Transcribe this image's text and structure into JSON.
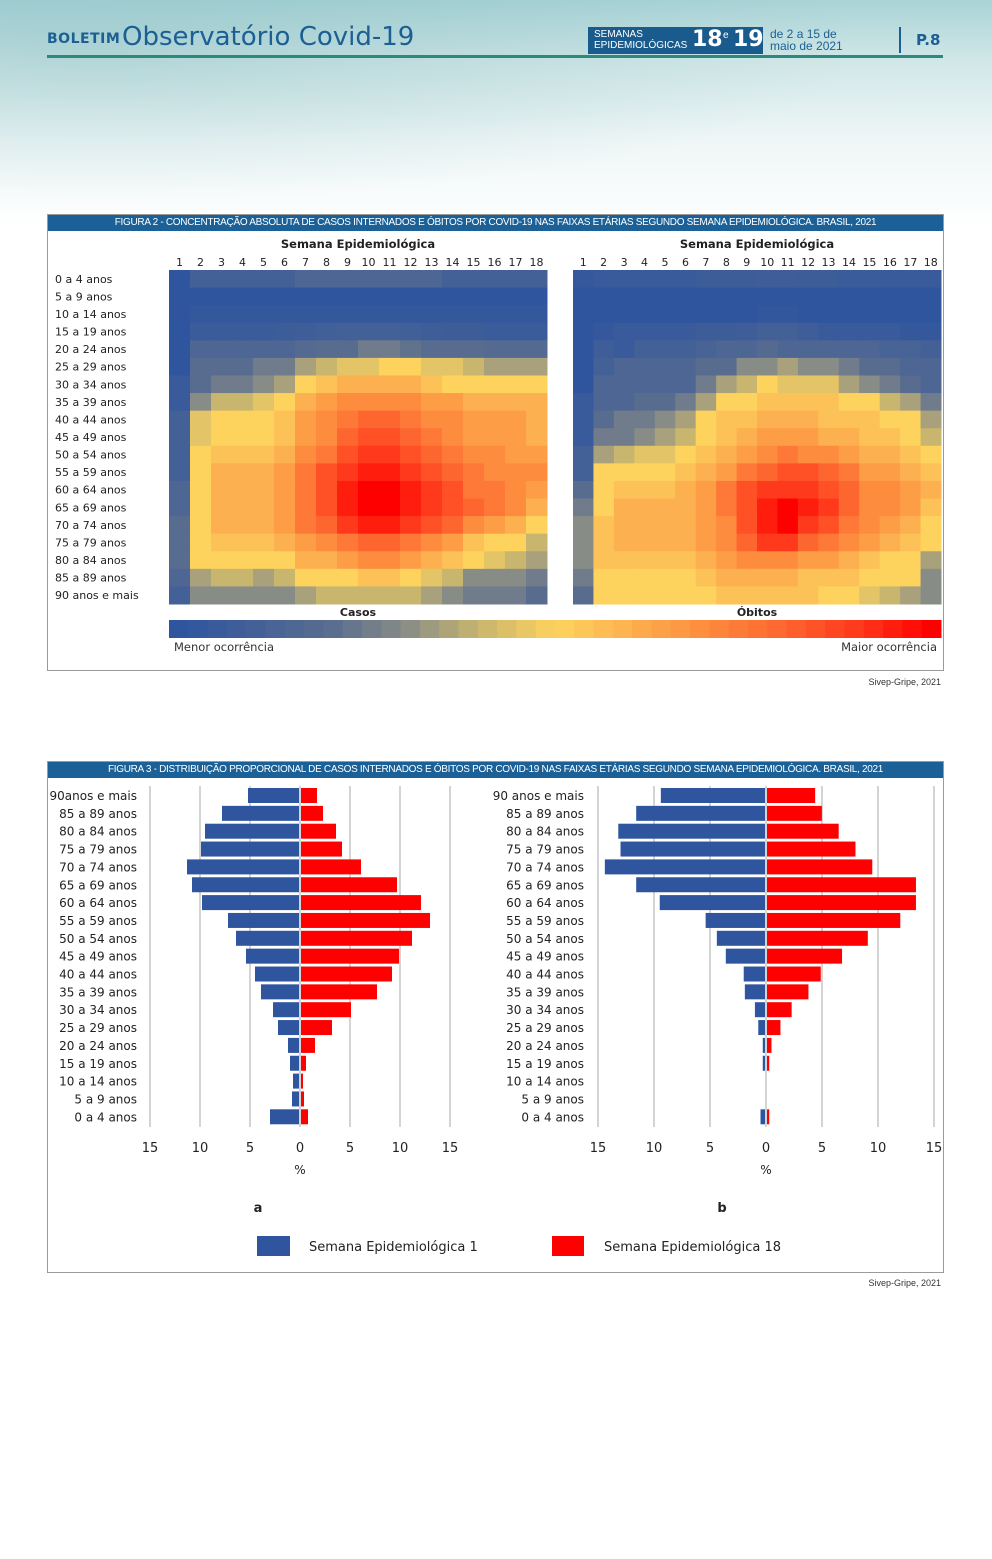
{
  "header": {
    "boletim": "BOLETIM",
    "title": "Observatório Covid-19",
    "badge_line1": "SEMANAS",
    "badge_line2": "EPIDEMIOLÓGICAS",
    "week_a": "18",
    "conj": "e",
    "week_b": "19",
    "dates_line1": "de 2 a 15 de",
    "dates_line2": "maio de 2021",
    "page": "P.8"
  },
  "colors": {
    "brand": "#1b5f93",
    "title_bar": "#1b6197",
    "series1": "#2f559f",
    "series18": "#ff0000"
  },
  "figure2": {
    "title": "FIGURA 2 - CONCENTRAÇÃO ABSOLUTA DE CASOS INTERNADOS E ÓBITOS POR COVID-19 NAS FAIXAS ETÁRIAS SEGUNDO SEMANA EPIDEMIOLÓGICA. BRASIL, 2021",
    "source": "Sivep-Gripe, 2021",
    "legend_low": "Menor ocorrência",
    "legend_high": "Maior ocorrência"
  },
  "figure3": {
    "title": "FIGURA 3 - DISTRIBUIÇÃO PROPORCIONAL DE CASOS INTERNADOS E ÓBITOS POR COVID-19 NAS FAIXAS ETÁRIAS SEGUNDO SEMANA EPIDEMIOLÓGICA. BRASIL, 2021",
    "source": "Sivep-Gripe, 2021",
    "legend": [
      "Semana Epidemiológica 1",
      "Semana Epidemiológica 18"
    ]
  },
  "chart_data": [
    {
      "type": "heatmap",
      "title": "Semana Epidemiológica",
      "xlabel": "Casos",
      "x": [
        "1",
        "2",
        "3",
        "4",
        "5",
        "6",
        "7",
        "8",
        "9",
        "10",
        "11",
        "12",
        "13",
        "14",
        "15",
        "16",
        "17",
        "18"
      ],
      "y": [
        "0 a 4 anos",
        "5 a 9 anos",
        "10 a 14 anos",
        "15 a 19 anos",
        "20 a 24 anos",
        "25 a 29 anos",
        "30 a 34 anos",
        "35 a 39 anos",
        "40 a 44 anos",
        "45 a 49 anos",
        "50 a 54 anos",
        "55 a 59 anos",
        "60 a 64 anos",
        "65 a 69 anos",
        "70 a 74 anos",
        "75 a 79 anos",
        "80 a 84 anos",
        "85 a 89 anos",
        "90 anos e mais"
      ],
      "scale": "relative 0 (Menor ocorrência) to 10 (Maior ocorrência)",
      "values": [
        [
          0,
          1,
          1,
          1,
          1,
          1,
          1.5,
          1.5,
          1.5,
          1.5,
          1.5,
          1.5,
          1.5,
          1,
          1,
          1,
          1,
          1
        ],
        [
          0,
          0,
          0,
          0,
          0,
          0,
          0,
          0,
          0,
          0,
          0,
          0,
          0,
          0,
          0,
          0,
          0,
          0
        ],
        [
          0,
          0.3,
          0.3,
          0.3,
          0.3,
          0.3,
          0.3,
          0.3,
          0.3,
          0.3,
          0.3,
          0.3,
          0.3,
          0.3,
          0.3,
          0.3,
          0.3,
          0.3
        ],
        [
          0,
          0.6,
          0.6,
          0.6,
          0.6,
          0.7,
          0.8,
          0.9,
          1,
          1,
          1,
          0.9,
          0.8,
          0.7,
          0.7,
          0.6,
          0.6,
          0.6
        ],
        [
          0,
          1.5,
          1.5,
          1.5,
          1.5,
          1.5,
          1.8,
          2,
          2,
          2.5,
          2.5,
          2.2,
          2,
          2,
          2,
          1.8,
          1.8,
          1.8
        ],
        [
          0,
          2,
          2,
          2,
          2.5,
          2.5,
          3.5,
          4,
          4.5,
          4.5,
          5,
          5,
          4.5,
          4.5,
          4,
          3.5,
          3.5,
          3.5
        ],
        [
          0.5,
          2,
          2.5,
          2.5,
          3,
          3.5,
          5,
          5.5,
          6,
          6,
          6,
          6,
          5.5,
          5,
          5,
          5,
          5,
          5
        ],
        [
          0.5,
          3,
          4,
          4,
          4.5,
          5,
          6,
          6.5,
          7,
          7,
          7,
          7,
          6.5,
          6.5,
          6,
          6,
          6,
          6
        ],
        [
          1,
          4.5,
          5,
          5,
          5,
          5.5,
          6.5,
          7,
          7.5,
          8,
          8,
          7.5,
          7,
          7,
          6.5,
          6.5,
          6.5,
          6
        ],
        [
          1,
          4.5,
          5,
          5,
          5,
          5.5,
          6.5,
          7,
          8,
          8.5,
          8.5,
          8,
          7.5,
          7,
          6.5,
          6.5,
          6.5,
          6
        ],
        [
          1,
          5,
          5.5,
          5.5,
          5.5,
          6,
          7,
          7.5,
          8.5,
          9,
          9,
          8.5,
          8,
          7.5,
          7,
          7,
          6.5,
          6.5
        ],
        [
          1,
          5,
          6,
          6,
          6,
          6.5,
          7.5,
          8.5,
          9,
          9.5,
          9.5,
          9,
          8.5,
          8,
          7.5,
          7,
          7,
          7
        ],
        [
          1.5,
          5,
          6,
          6,
          6,
          6.5,
          7.5,
          8.5,
          9.5,
          10,
          10,
          9.5,
          9,
          8.5,
          7.5,
          7.5,
          7,
          6.5
        ],
        [
          1.5,
          5,
          6,
          6,
          6,
          6.5,
          7.5,
          8.5,
          9.5,
          10,
          10,
          9.5,
          9,
          8.5,
          8,
          7.5,
          7,
          6
        ],
        [
          2,
          5,
          6,
          6,
          6,
          6.5,
          7.5,
          8,
          9,
          9.5,
          9.5,
          9,
          8.5,
          8,
          7,
          6.5,
          6,
          5
        ],
        [
          2,
          5,
          5.5,
          5.5,
          5.5,
          6,
          6.5,
          7,
          7.5,
          8,
          8,
          7.5,
          7,
          6.5,
          5.5,
          5,
          5,
          4
        ],
        [
          2,
          5,
          5,
          5,
          5,
          5,
          6,
          6,
          6.5,
          7,
          7,
          6.5,
          6,
          5.5,
          5,
          4.5,
          4,
          3.5
        ],
        [
          1.5,
          3.5,
          4,
          4,
          3.5,
          4,
          5,
          5,
          5,
          5.5,
          5.5,
          5,
          4.5,
          4,
          3,
          3,
          3,
          2.5
        ],
        [
          1,
          3,
          3,
          3,
          3,
          3,
          3.5,
          4,
          4,
          4,
          4,
          4,
          3.5,
          3,
          2.5,
          2.5,
          2.5,
          2
        ]
      ]
    },
    {
      "type": "heatmap",
      "title": "Semana Epidemiológica",
      "xlabel": "Óbitos",
      "x": [
        "1",
        "2",
        "3",
        "4",
        "5",
        "6",
        "7",
        "8",
        "9",
        "10",
        "11",
        "12",
        "13",
        "14",
        "15",
        "16",
        "17",
        "18"
      ],
      "y": [
        "0 a 4 anos",
        "5 a 9 anos",
        "10 a 14 anos",
        "15 a 19 anos",
        "20 a 24 anos",
        "25 a 29 anos",
        "30 a 34 anos",
        "35 a 39 anos",
        "40 a 44 anos",
        "45 a 49 anos",
        "50 a 54 anos",
        "55 a 59 anos",
        "60 a 64 anos",
        "65 a 69 anos",
        "70 a 74 anos",
        "75 a 79 anos",
        "80 a 84 anos",
        "85 a 89 anos",
        "90 anos e mais"
      ],
      "scale": "relative 0 (Menor ocorrência) to 10 (Maior ocorrência)",
      "values": [
        [
          0.3,
          0.5,
          0.5,
          0.5,
          0.5,
          0.5,
          0.7,
          0.7,
          0.7,
          0.8,
          0.8,
          0.7,
          0.7,
          0.6,
          0.6,
          0.5,
          0.5,
          0.5
        ],
        [
          0,
          0,
          0,
          0,
          0,
          0,
          0,
          0,
          0,
          0,
          0,
          0,
          0,
          0,
          0,
          0,
          0,
          0
        ],
        [
          0,
          0,
          0,
          0,
          0,
          0,
          0,
          0,
          0,
          0.2,
          0.2,
          0,
          0,
          0,
          0,
          0,
          0,
          0
        ],
        [
          0,
          0.3,
          0.5,
          0.5,
          0.5,
          0.5,
          0.7,
          0.7,
          0.8,
          1,
          1,
          0.8,
          0.5,
          0.5,
          0.5,
          0.5,
          0.3,
          0.3
        ],
        [
          0,
          0.8,
          0.5,
          1,
          1,
          1,
          1.2,
          1.5,
          1.5,
          1.8,
          1.5,
          1.5,
          1.5,
          1.5,
          1.5,
          1.2,
          1.2,
          1
        ],
        [
          0,
          1,
          1.5,
          1.5,
          1.5,
          1.5,
          2,
          2,
          3,
          3,
          3.5,
          3,
          3,
          2.5,
          2,
          2,
          1.5,
          1.5
        ],
        [
          0,
          1.5,
          1.5,
          1.5,
          1.5,
          1.5,
          2.5,
          3.5,
          4,
          5,
          4.5,
          4.5,
          4.5,
          3.5,
          3,
          2.5,
          2,
          1.5
        ],
        [
          0.5,
          1.5,
          1.5,
          2,
          2,
          2.5,
          3.5,
          5,
          5,
          5.5,
          5.5,
          5.5,
          5.5,
          5,
          5,
          4,
          3.5,
          2.5
        ],
        [
          0.5,
          2,
          2.5,
          2.5,
          3,
          3.5,
          5,
          5.5,
          5.5,
          6,
          6,
          6,
          5.5,
          5.5,
          5.5,
          5,
          5,
          3.5
        ],
        [
          0.5,
          2.5,
          2.5,
          3,
          3.5,
          4,
          5,
          5.5,
          6,
          6.5,
          6.5,
          6.5,
          6,
          6,
          5.5,
          5.5,
          5,
          4
        ],
        [
          1,
          3.5,
          4,
          4.5,
          4.5,
          5,
          5.5,
          6,
          6.5,
          7,
          7.5,
          7,
          7,
          6.5,
          6,
          6,
          5.5,
          5
        ],
        [
          1,
          5,
          5,
          5,
          5,
          5.5,
          6,
          6.5,
          7.5,
          8,
          8.5,
          8.5,
          8,
          7.5,
          6.5,
          6.5,
          6,
          5.5
        ],
        [
          2,
          5,
          5.5,
          5.5,
          5.5,
          6,
          6.5,
          7.5,
          8.5,
          9,
          9,
          9,
          8.5,
          8,
          7,
          7,
          6.5,
          6
        ],
        [
          2.5,
          5,
          6,
          6,
          6,
          6,
          6.5,
          7.5,
          8.5,
          9.5,
          10,
          9.5,
          9,
          8,
          7,
          7,
          6.5,
          5.5
        ],
        [
          3,
          5.5,
          6,
          6,
          6,
          6,
          6.5,
          7,
          8.5,
          9.5,
          10,
          9,
          8.5,
          7.5,
          7,
          6.5,
          6,
          5
        ],
        [
          3,
          5.5,
          6,
          6,
          6,
          6,
          6.5,
          7,
          8,
          9,
          9,
          8,
          7.5,
          7,
          6.5,
          6,
          5.5,
          5
        ],
        [
          3,
          5.5,
          5.5,
          5.5,
          5.5,
          5.5,
          6,
          6.5,
          7,
          7,
          7,
          6.5,
          6.5,
          6,
          5.5,
          5,
          5,
          3.5
        ],
        [
          2.5,
          5,
          5,
          5,
          5,
          5,
          5.5,
          6,
          6,
          6,
          6,
          5.5,
          5.5,
          5.5,
          5,
          5,
          5,
          3
        ],
        [
          2,
          5,
          5,
          5,
          5,
          5,
          5,
          5.5,
          5.5,
          5.5,
          5.5,
          5.5,
          5,
          5,
          4.5,
          4,
          3.5,
          3
        ]
      ]
    },
    {
      "type": "bar",
      "orientation": "horizontal-pyramid",
      "panel_label": "a",
      "xlabel": "%",
      "xlim": [
        -15,
        15
      ],
      "xticks": [
        "15",
        "10",
        "5",
        "0",
        "5",
        "10",
        "15"
      ],
      "grid": true,
      "categories": [
        "90anos e mais",
        "85 a 89 anos",
        "80 a 84 anos",
        "75 a 79 anos",
        "70 a 74 anos",
        "65 a 69 anos",
        "60 a 64 anos",
        "55 a 59 anos",
        "50 a 54 anos",
        "45 a 49 anos",
        "40 a 44 anos",
        "35 a 39 anos",
        "30 a 34 anos",
        "25 a 29 anos",
        "20 a 24 anos",
        "15 a 19 anos",
        "10 a 14 anos",
        "5 a 9 anos",
        "0 a 4 anos"
      ],
      "series": [
        {
          "name": "Semana Epidemiológica 1",
          "side": "left",
          "values": [
            5.1,
            7.7,
            9.4,
            9.8,
            11.2,
            10.7,
            9.7,
            7.1,
            6.3,
            5.3,
            4.4,
            3.8,
            2.6,
            2.1,
            1.1,
            0.9,
            0.6,
            0.7,
            2.9
          ]
        },
        {
          "name": "Semana Epidemiológica 18",
          "side": "right",
          "values": [
            1.6,
            2.2,
            3.5,
            4.1,
            6.0,
            9.6,
            12.0,
            12.9,
            11.1,
            9.8,
            9.1,
            7.6,
            5.0,
            3.1,
            1.4,
            0.5,
            0.2,
            0.3,
            0.7
          ]
        }
      ]
    },
    {
      "type": "bar",
      "orientation": "horizontal-pyramid",
      "panel_label": "b",
      "xlabel": "%",
      "xlim": [
        -15,
        15
      ],
      "xticks": [
        "15",
        "10",
        "5",
        "0",
        "5",
        "10",
        "15"
      ],
      "grid": true,
      "categories": [
        "90 anos e mais",
        "85 a 89 anos",
        "80 a 84 anos",
        "75 a 79 anos",
        "70 a 74 anos",
        "65 a 69 anos",
        "60 a 64 anos",
        "55 a 59 anos",
        "50 a 54 anos",
        "45 a 49 anos",
        "40 a 44 anos",
        "35 a 39 anos",
        "30 a 34 anos",
        "25 a 29 anos",
        "20 a 24 anos",
        "15 a 19 anos",
        "10 a 14 anos",
        "5 a 9 anos",
        "0 a 4 anos"
      ],
      "series": [
        {
          "name": "Semana Epidemiológica 1",
          "side": "left",
          "values": [
            9.3,
            11.5,
            13.1,
            12.9,
            14.3,
            11.5,
            9.4,
            5.3,
            4.3,
            3.5,
            1.9,
            1.8,
            0.9,
            0.6,
            0.2,
            0.2,
            0,
            0,
            0.4
          ]
        },
        {
          "name": "Semana Epidemiológica 18",
          "side": "right",
          "values": [
            4.3,
            4.9,
            6.4,
            7.9,
            9.4,
            13.3,
            13.3,
            11.9,
            9.0,
            6.7,
            4.8,
            3.7,
            2.2,
            1.2,
            0.4,
            0.2,
            0,
            0,
            0.2
          ]
        }
      ]
    }
  ]
}
